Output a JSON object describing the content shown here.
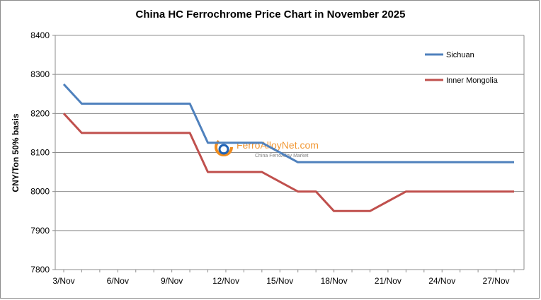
{
  "chart_data": {
    "type": "line",
    "title": "China HC Ferrochrome Price Chart in November 2025",
    "xlabel": "",
    "ylabel": "CNY/Ton 50% basis",
    "ylim": [
      7800,
      8400
    ],
    "yticks": [
      7800,
      7900,
      8000,
      8100,
      8200,
      8300,
      8400
    ],
    "grid": true,
    "legend_position": "top-right",
    "x_tick_labels": [
      "3/Nov",
      "6/Nov",
      "9/Nov",
      "12/Nov",
      "15/Nov",
      "18/Nov",
      "21/Nov",
      "24/Nov",
      "27/Nov"
    ],
    "x_tick_days": [
      3,
      6,
      9,
      12,
      15,
      18,
      21,
      24,
      27
    ],
    "x": [
      3,
      4,
      5,
      6,
      7,
      8,
      9,
      10,
      11,
      12,
      13,
      14,
      15,
      16,
      17,
      18,
      19,
      20,
      21,
      22,
      23,
      24,
      25,
      26,
      27,
      28
    ],
    "xlim": [
      3,
      28
    ],
    "series": [
      {
        "name": "Sichuan",
        "color": "#4f81bd",
        "values": [
          8275,
          8225,
          8225,
          8225,
          8225,
          8225,
          8225,
          8225,
          8125,
          8125,
          8125,
          8125,
          8100,
          8075,
          8075,
          8075,
          8075,
          8075,
          8075,
          8075,
          8075,
          8075,
          8075,
          8075,
          8075,
          8075
        ]
      },
      {
        "name": "Inner Mongolia",
        "color": "#c0504d",
        "values": [
          8200,
          8150,
          8150,
          8150,
          8150,
          8150,
          8150,
          8150,
          8050,
          8050,
          8050,
          8050,
          8025,
          8000,
          8000,
          7950,
          7950,
          7950,
          7975,
          8000,
          8000,
          8000,
          8000,
          8000,
          8000,
          8000
        ]
      }
    ]
  },
  "watermark": {
    "brand": "FerroAlloyNet.com",
    "tagline": "China FerroAlloy Market",
    "colors": {
      "orange": "#f08c1e",
      "blue": "#1f62b5"
    }
  }
}
